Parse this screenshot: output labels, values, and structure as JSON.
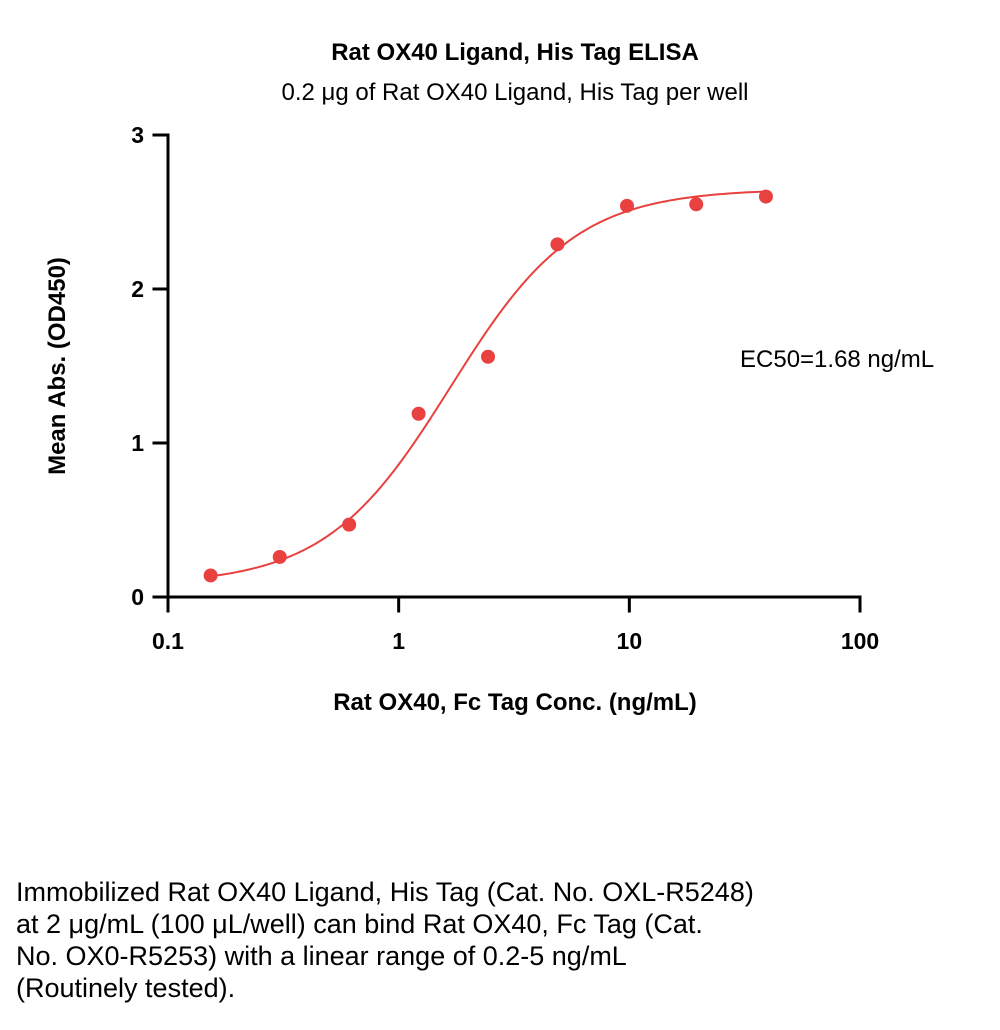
{
  "chart_data": {
    "type": "scatter",
    "title": "Rat OX40 Ligand, His Tag ELISA",
    "subtitle": "0.2 μg of Rat OX40 Ligand, His Tag per well",
    "xlabel": "Rat OX40, Fc Tag Conc. (ng/mL)",
    "ylabel": "Mean Abs. (OD450)",
    "xscale": "log",
    "xlim": [
      0.1,
      100
    ],
    "ylim": [
      0,
      3
    ],
    "x_ticks": [
      "0.1",
      "1",
      "10",
      "100"
    ],
    "y_ticks": [
      "0",
      "1",
      "2",
      "3"
    ],
    "annotation": "EC50=1.68 ng/mL",
    "grid": false,
    "color": "#e8413f",
    "series": [
      {
        "x": [
          0.153,
          0.305,
          0.61,
          1.22,
          2.44,
          4.88,
          9.77,
          19.5,
          39.1
        ],
        "y": [
          0.14,
          0.26,
          0.47,
          1.19,
          1.56,
          2.29,
          2.54,
          2.55,
          2.6
        ]
      }
    ],
    "fit": {
      "model": "4PL",
      "bottom": 0.08,
      "top": 2.65,
      "ec50": 1.68,
      "hill": 1.6,
      "x_range": [
        0.153,
        39.1
      ]
    }
  },
  "caption": {
    "lines": [
      "Immobilized Rat OX40 Ligand, His Tag (Cat. No. OXL-R5248)",
      "at 2 μg/mL (100 μL/well) can bind Rat OX40, Fc Tag (Cat.",
      "No. OX0-R5253) with a linear range of 0.2-5 ng/mL",
      "(Routinely tested)."
    ]
  }
}
